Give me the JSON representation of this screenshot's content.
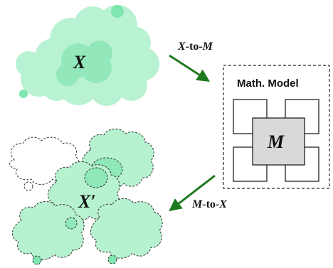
{
  "colors": {
    "blob_fill": "#a8f0c8",
    "blob_dark": "#7ee6ae",
    "blob_dot": "#62d898",
    "arrow": "#1f7a1f",
    "model_gray": "#d9d9d9",
    "line": "#222222"
  },
  "labels": {
    "x_label": "X",
    "x_to_m_X": "X",
    "x_to_m_to": "-to-",
    "x_to_m_M": "M",
    "model_title": "Math. Model",
    "m_label": "M",
    "x_prime_label": "X′",
    "m_to_x_M": "M",
    "m_to_x_to": "-to-",
    "m_to_x_X": "X"
  }
}
